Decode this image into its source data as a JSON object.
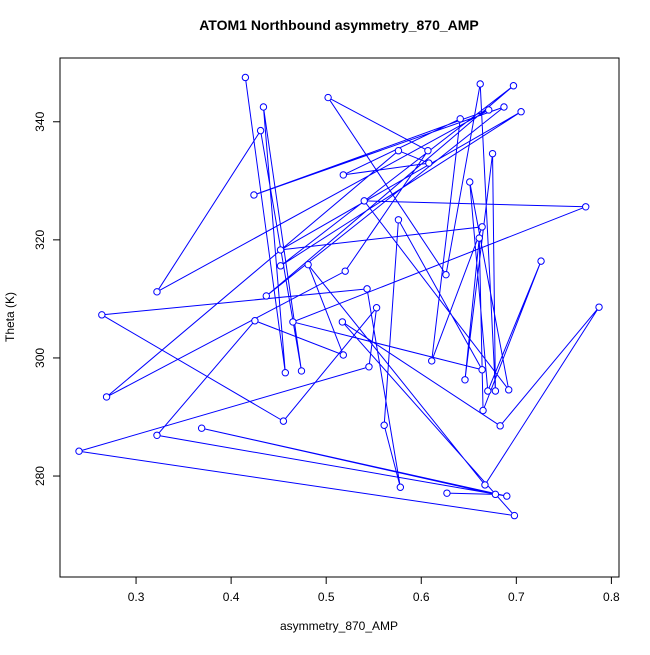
{
  "chart_data": {
    "type": "line",
    "title": "ATOM1 Northbound asymmetry_870_AMP",
    "x_label": "asymmetry_870_AMP",
    "y_label": "Theta (K)",
    "x": [
      0.415,
      0.457,
      0.434,
      0.474,
      0.431,
      0.322,
      0.671,
      0.424,
      0.687,
      0.437,
      0.697,
      0.452,
      0.705,
      0.452,
      0.664,
      0.611,
      0.641,
      0.518,
      0.608,
      0.576,
      0.269,
      0.52,
      0.607,
      0.502,
      0.626,
      0.662,
      0.678,
      0.675,
      0.646,
      0.661,
      0.665,
      0.726,
      0.67,
      0.651,
      0.692,
      0.54,
      0.773,
      0.465,
      0.664,
      0.576,
      0.561,
      0.578,
      0.543,
      0.264,
      0.455,
      0.553,
      0.545,
      0.24,
      0.698,
      0.517,
      0.683,
      0.787,
      0.667,
      0.481,
      0.518,
      0.425,
      0.322,
      0.69,
      0.369,
      0.678,
      0.627
    ],
    "series": [
      {
        "name": "Theta",
        "color": "#0000ff",
        "values": [
          347.5,
          297.5,
          342.5,
          297.8,
          338.5,
          311.2,
          342.0,
          327.6,
          342.5,
          310.5,
          346.1,
          315.6,
          341.7,
          318.3,
          322.2,
          299.5,
          340.5,
          331.0,
          333.0,
          335.1,
          293.4,
          314.7,
          335.1,
          344.1,
          314.1,
          346.4,
          294.4,
          334.6,
          296.3,
          320.3,
          291.1,
          316.4,
          294.4,
          329.8,
          294.6,
          326.6,
          325.6,
          306.1,
          298.0,
          323.4,
          288.6,
          278.1,
          311.7,
          307.3,
          289.3,
          308.5,
          298.5,
          284.2,
          273.3,
          306.1,
          288.5,
          308.6,
          278.5,
          315.8,
          300.5,
          306.3,
          286.9,
          276.6,
          288.1,
          276.9,
          277.1
        ]
      }
    ],
    "xlim": [
      0.22,
      0.808
    ],
    "ylim": [
      262.9,
      350.8
    ],
    "xticks": [
      0.3,
      0.4,
      0.5,
      0.6,
      0.7,
      0.8
    ],
    "yticks": [
      280,
      300,
      320,
      340
    ]
  }
}
